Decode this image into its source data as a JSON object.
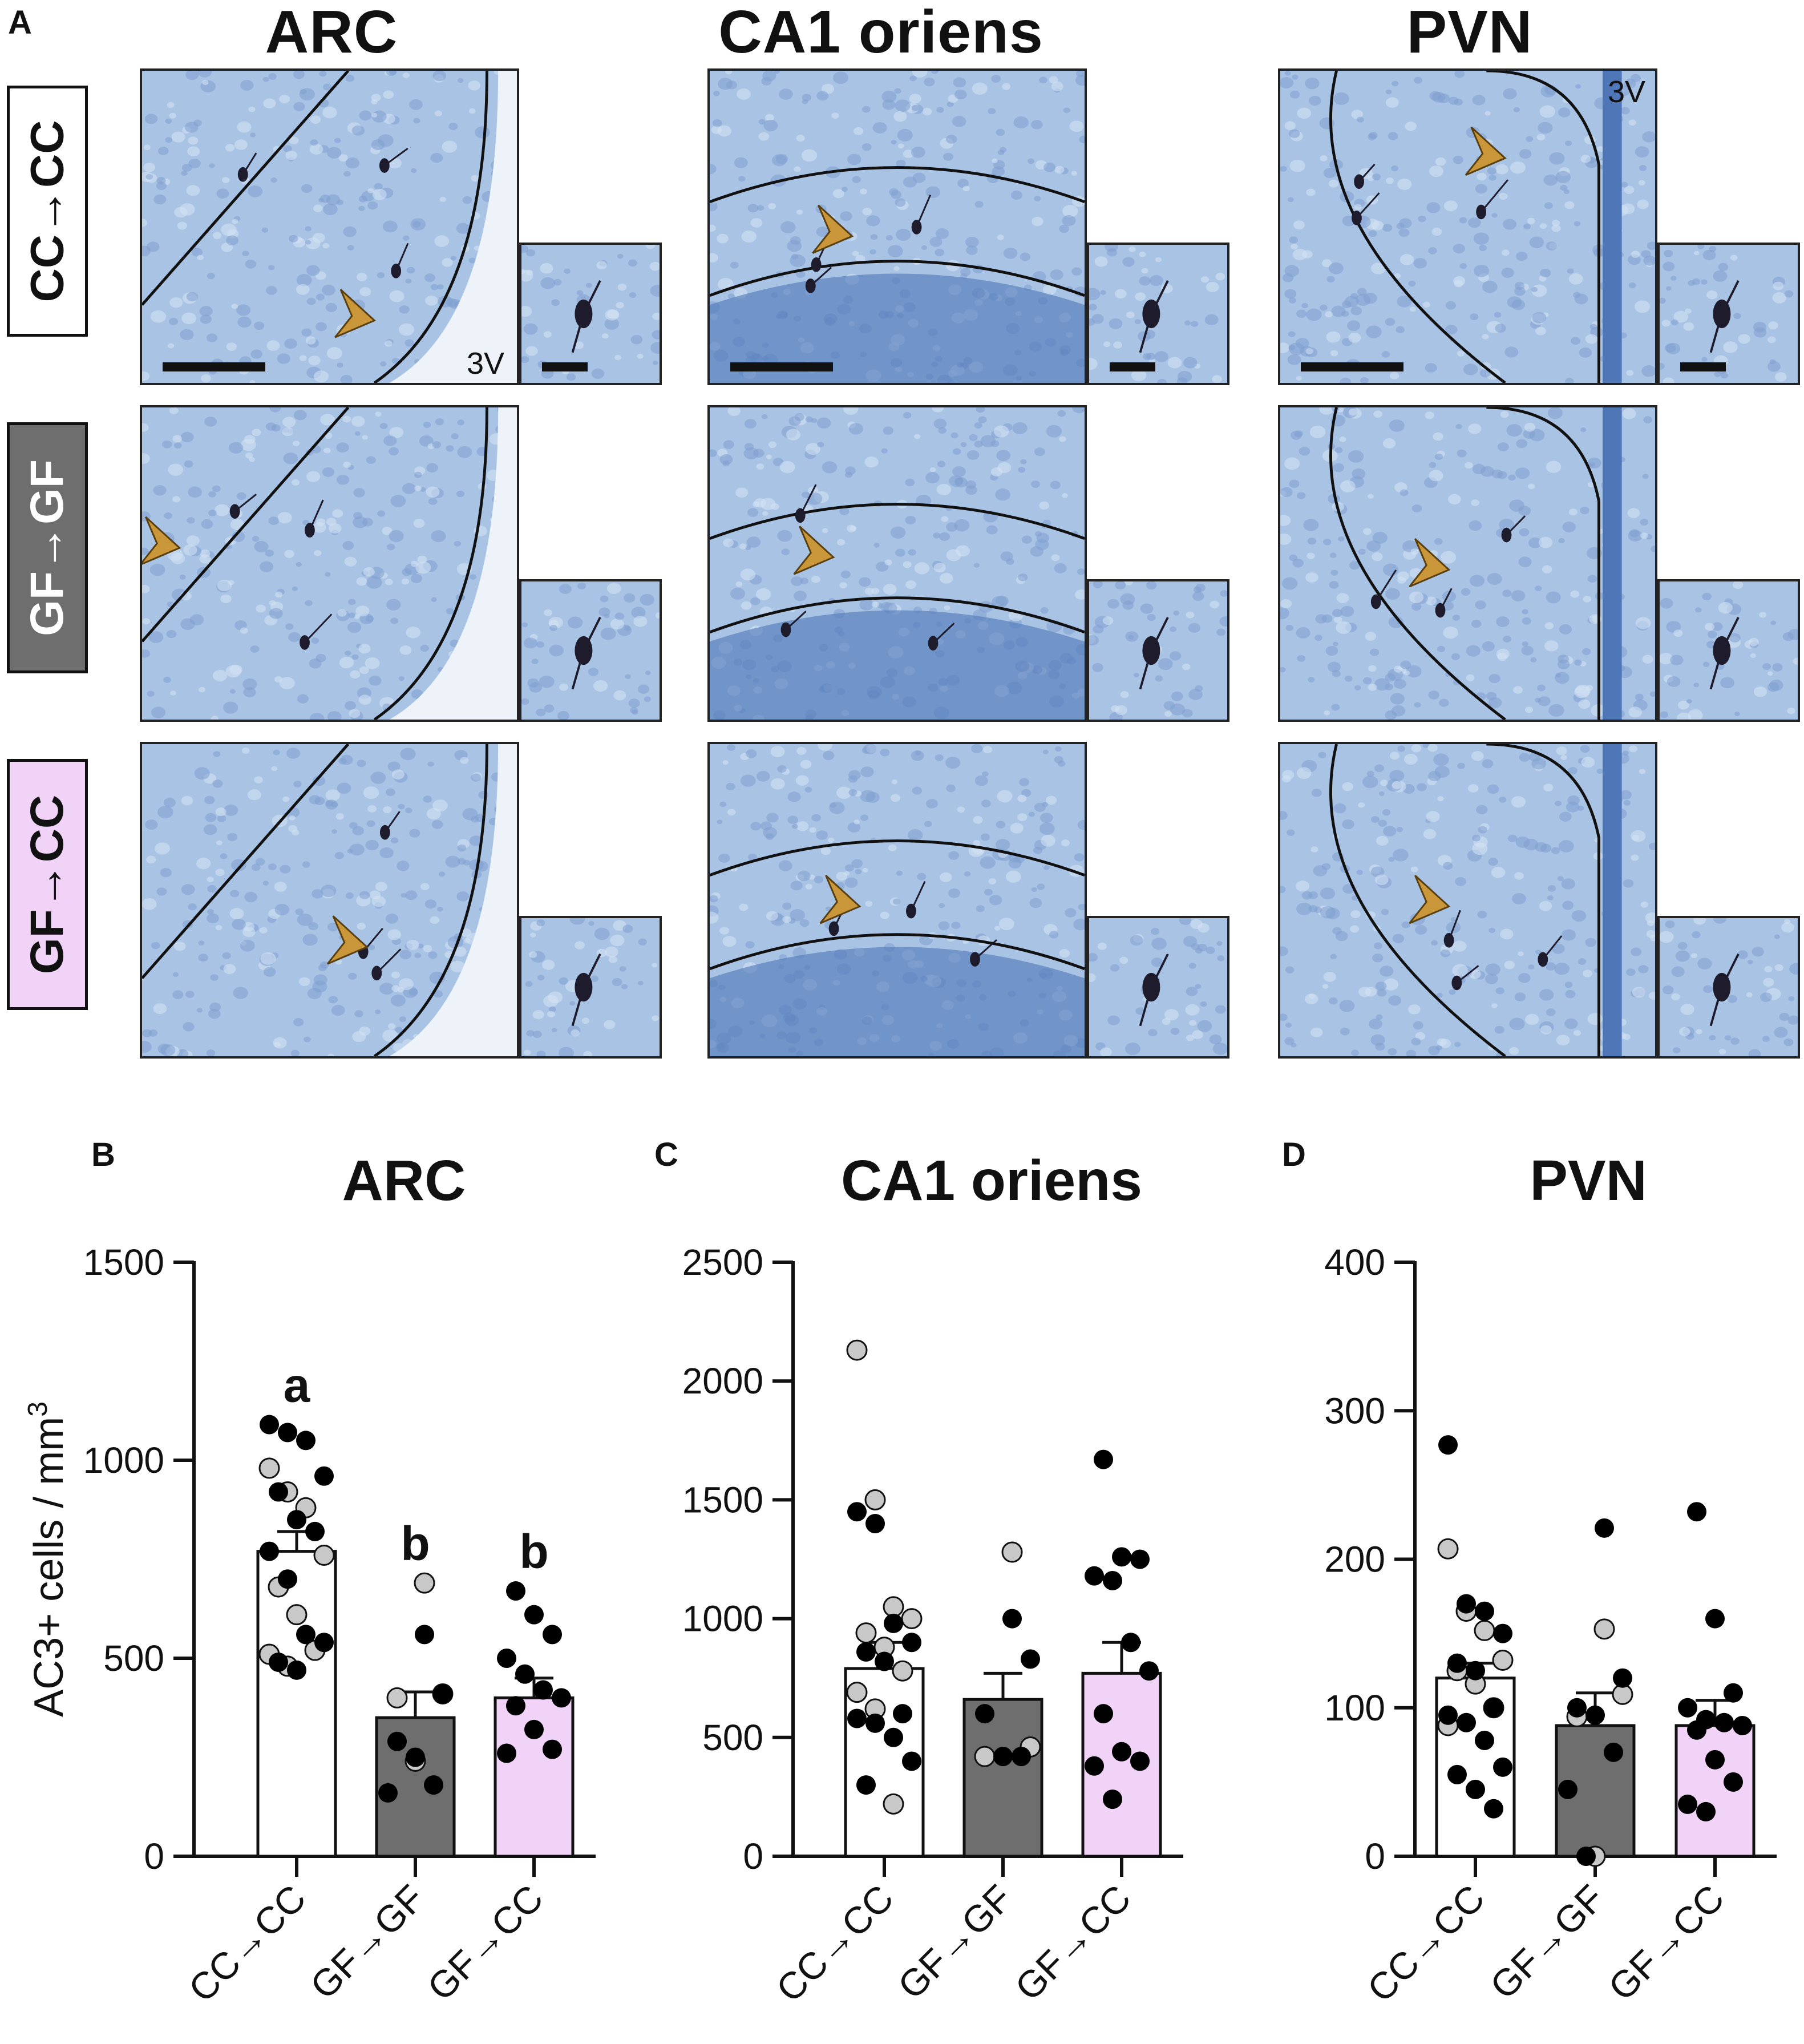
{
  "panel_labels": {
    "a": "A",
    "b": "B",
    "c": "C",
    "d": "D"
  },
  "micrograph_columns": [
    "ARC",
    "CA1 oriens",
    "PVN"
  ],
  "micrograph_rows": [
    {
      "label": "CC→CC",
      "color": "#ffffff",
      "text_color": "#111111"
    },
    {
      "label": "GF→GF",
      "color": "#6e6e6e",
      "text_color": "#ffffff"
    },
    {
      "label": "GF→CC",
      "color": "#f0d3f7",
      "text_color": "#111111"
    }
  ],
  "annotations": {
    "third_ventricle": "3V"
  },
  "colors": {
    "tissue": "#a9c3e4",
    "tissue_dark": "#4f77b8",
    "arrowhead": "#c9963a",
    "bar_cc_cc": "#ffffff",
    "bar_gf_gf": "#6e6e6e",
    "bar_gf_cc": "#f0d3f7",
    "dot_black": "#000000",
    "dot_gray": "#c8c8c8"
  },
  "chart_data": [
    {
      "type": "bar",
      "title": "ARC",
      "ylabel": "AC3+ cells / mm3",
      "ylim": [
        0,
        1500
      ],
      "yticks": [
        0,
        500,
        1000,
        1500
      ],
      "categories": [
        "CC→CC",
        "GF→GF",
        "GF→CC"
      ],
      "values": [
        770,
        350,
        400
      ],
      "errors": [
        50,
        65,
        50
      ],
      "significance": [
        "a",
        "b",
        "b"
      ],
      "points": [
        {
          "black": [
            1090,
            1070,
            1050,
            960,
            920,
            850,
            820,
            770,
            700,
            560,
            540,
            490,
            470
          ],
          "gray": [
            980,
            920,
            880,
            760,
            680,
            610,
            520,
            510,
            480
          ]
        },
        {
          "black": [
            560,
            410,
            290,
            250,
            180,
            160
          ],
          "gray": [
            690,
            410,
            400,
            240
          ]
        },
        {
          "black": [
            670,
            610,
            560,
            500,
            460,
            420,
            400,
            380,
            320,
            270,
            260
          ]
        }
      ]
    },
    {
      "type": "bar",
      "title": "CA1 oriens",
      "ylim": [
        0,
        2500
      ],
      "yticks": [
        0,
        500,
        1000,
        1500,
        2000,
        2500
      ],
      "categories": [
        "CC→CC",
        "GF→GF",
        "GF→CC"
      ],
      "values": [
        790,
        660,
        770
      ],
      "errors": [
        110,
        110,
        130
      ],
      "points": [
        {
          "black": [
            1450,
            1400,
            980,
            900,
            860,
            820,
            600,
            580,
            560,
            500,
            400,
            300
          ],
          "gray": [
            2130,
            1500,
            1050,
            1000,
            940,
            880,
            780,
            690,
            620,
            220
          ]
        },
        {
          "black": [
            1000,
            830,
            600,
            420,
            420
          ],
          "gray": [
            1280,
            460,
            420
          ]
        },
        {
          "black": [
            1670,
            1260,
            1250,
            1180,
            1160,
            900,
            780,
            600,
            440,
            400,
            380,
            240
          ]
        }
      ]
    },
    {
      "type": "bar",
      "title": "PVN",
      "ylim": [
        0,
        400
      ],
      "yticks": [
        0,
        100,
        200,
        300,
        400
      ],
      "categories": [
        "CC→CC",
        "GF→GF",
        "GF→CC"
      ],
      "values": [
        120,
        88,
        88
      ],
      "errors": [
        10,
        22,
        17
      ],
      "points": [
        {
          "black": [
            277,
            170,
            165,
            150,
            130,
            125,
            100,
            95,
            90,
            78,
            60,
            55,
            45,
            32
          ],
          "gray": [
            207,
            165,
            152,
            132,
            125,
            116,
            100,
            88
          ]
        },
        {
          "black": [
            221,
            120,
            100,
            95,
            70,
            45,
            0
          ],
          "gray": [
            153,
            109,
            94,
            0
          ]
        },
        {
          "black": [
            232,
            160,
            110,
            100,
            92,
            90,
            88,
            85,
            65,
            50,
            35,
            30
          ]
        }
      ]
    }
  ]
}
